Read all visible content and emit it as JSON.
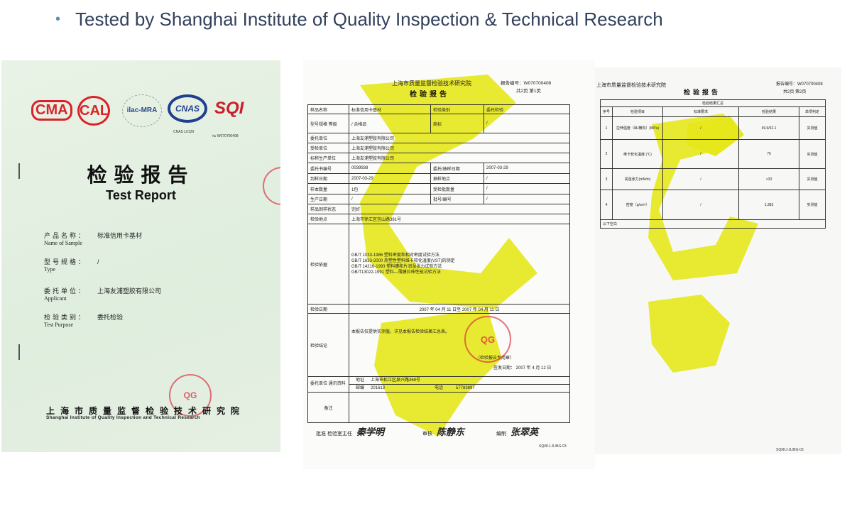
{
  "slide": {
    "bullet": "Tested by Shanghai Institute of Quality Inspection & Technical Research"
  },
  "cover": {
    "logos": [
      "CMA",
      "CAL",
      "ilac-MRA",
      "CNAS",
      "SQI"
    ],
    "cnas_code": "CNAS L0129",
    "report_no": "№ W070700408",
    "title_cn": "检验报告",
    "title_en": "Test Report",
    "fields": [
      {
        "label_cn": "产品名称：",
        "label_en": "Name of Sample",
        "value": "标准信用卡基材"
      },
      {
        "label_cn": "型号规格：",
        "label_en": "Type",
        "value": "/"
      },
      {
        "label_cn": "委托单位：",
        "label_en": "Applicant",
        "value": "上海友浦塑胶有限公司"
      },
      {
        "label_cn": "检验类别：",
        "label_en": "Test Purpose",
        "value": "委托检验"
      }
    ],
    "institute_cn": "上海市质量监督检验技术研究院",
    "institute_en": "Shanghai Institute of Quality Inspection and Technical Research",
    "stamp": "QG"
  },
  "page1": {
    "institute": "上海市质量监督检验技术研究院",
    "title": "检验报告",
    "report_no": "报告编号：W070700408",
    "page": "共2页 第1页",
    "rows": {
      "sample_name": [
        "样品名称",
        "标准信用卡基材",
        "检验类别",
        "委托检验"
      ],
      "type_grade": [
        "型号规格 等级",
        "/ 合格品",
        "商标",
        "/"
      ],
      "applicant": [
        "委托单位",
        "上海友浦塑胶有限公司"
      ],
      "inspected": [
        "受检单位",
        "上海友浦塑胶有限公司"
      ],
      "manufacturer": [
        "标称生产单位",
        "上海友浦塑胶有限公司"
      ],
      "order_no": [
        "委托书编号",
        "0039938",
        "委托/抽样日期",
        "2007-03-29"
      ],
      "arrival": [
        "到样日期",
        "2007-03-29",
        "抽样地点",
        "/"
      ],
      "quantity": [
        "样本数量",
        "1包",
        "受检批数量",
        "/"
      ],
      "prod_date": [
        "生产日期",
        "/",
        "批号/编号",
        "/"
      ],
      "condition": [
        "样品到样状态",
        "完好"
      ],
      "location": [
        "检验地点",
        "上海市徐汇区宜山路381号"
      ]
    },
    "basis_label": "检验依据",
    "basis": [
      "GB/T 1033-1986 塑料密度和相对密度试验方法",
      "GB/T 1633-2000 热塑性塑料维卡软化温度(VST)的测定",
      "GB/T 14216-1993 塑料膜和片润湿张力试验方法",
      "GB/T13022-1991 塑料—薄膜拉伸性能试验方法"
    ],
    "date_label": "检验日期",
    "date_value": "2007 年 04 月 11 日至 2007 年 04 月 11 日",
    "conclusion_label": "检验结论",
    "conclusion": "本报告仅提供实测值，详见本报告检验结果汇总表。",
    "seal_note": "（检验报告专用章）",
    "issue_date": "签发日期： 2007 年 4 月 12 日",
    "contact_label": "委托单位 通讯资料",
    "address_label": "地址",
    "address": "上海市松江区泉兴路368号",
    "zip_label": "邮编",
    "zip": "201613",
    "phone_label": "电话",
    "phone": "57783897",
    "remarks_label": "备注",
    "approve_label": "批准",
    "approve_title": "检验室主任",
    "approve_name": "秦学明",
    "review_label": "审核",
    "review_sig": "陈静东",
    "prepare_label": "编制",
    "prepare_sig": "张翠英",
    "form_code": "SQI/KJ-JL/BG-03",
    "stamp": "QG"
  },
  "page2": {
    "institute": "上海市质量监督检验技术研究院",
    "title": "检验报告",
    "report_no": "报告编号：W070700408",
    "page": "共2页 第2页",
    "table_title": "检验结果汇总",
    "headers": [
      "序号",
      "检验项目",
      "标准要求",
      "检验结果",
      "单项判定"
    ],
    "rows": [
      [
        "1",
        "拉伸强度（纵/横向）(MPa)",
        "/",
        "49.6/52.1",
        "实测值"
      ],
      [
        "2",
        "维卡软化温度 (℃)",
        "/",
        "76",
        "实测值"
      ],
      [
        "3",
        "润湿张力(mN/m)",
        "/",
        ">33",
        "实测值"
      ],
      [
        "4",
        "密度（g/cm³）",
        "/",
        "1.383",
        "实测值"
      ]
    ],
    "footer": "以下空白",
    "form_code": "SQI/KJ-JL/BG-03"
  },
  "colors": {
    "bullet_text": "#33415c",
    "watermark_yellow": "#e6e81c",
    "stamp_red": "#dc283c",
    "cover_bg": "#e2efdf"
  }
}
